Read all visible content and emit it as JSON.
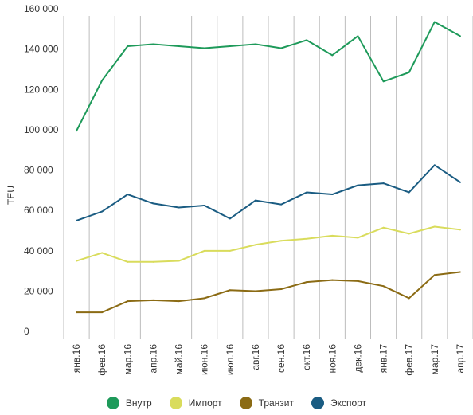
{
  "chart_data": {
    "type": "line",
    "title": "",
    "xlabel": "",
    "ylabel": "TEU",
    "ylim": [
      0,
      160000
    ],
    "yticks": [
      0,
      20000,
      40000,
      60000,
      80000,
      100000,
      120000,
      140000,
      160000
    ],
    "ytick_labels": [
      "0",
      "20 000",
      "40 000",
      "60 000",
      "80 000",
      "100 000",
      "120 000",
      "140 000",
      "160 000"
    ],
    "grid": "vertical",
    "legend_position": "bottom",
    "categories": [
      "янв.16",
      "фев.16",
      "мар.16",
      "апр.16",
      "май.16",
      "июн.16",
      "июл.16",
      "авг.16",
      "сен.16",
      "окт.16",
      "ноя.16",
      "дек.16",
      "янв.17",
      "фев.17",
      "мар.17",
      "апр.17"
    ],
    "series": [
      {
        "name": "Внутр",
        "color": "#1e9a5a",
        "values": [
          103000,
          128000,
          145000,
          146000,
          145000,
          144000,
          145000,
          146000,
          144000,
          148000,
          140500,
          150000,
          127500,
          132000,
          157000,
          150000
        ]
      },
      {
        "name": "Импорт",
        "color": "#d9dc5c",
        "values": [
          38500,
          42500,
          38000,
          38000,
          38500,
          43500,
          43500,
          46500,
          48500,
          49500,
          51000,
          50000,
          55000,
          52000,
          55500,
          54000
        ]
      },
      {
        "name": "Транзит",
        "color": "#8b6b14",
        "values": [
          13000,
          13000,
          18500,
          19000,
          18500,
          20000,
          24000,
          23500,
          24500,
          28000,
          29000,
          28500,
          26000,
          20000,
          31500,
          33000
        ]
      },
      {
        "name": "Экспорт",
        "color": "#1a5c82",
        "values": [
          58500,
          63000,
          71500,
          67000,
          65000,
          66000,
          59500,
          68500,
          66500,
          72500,
          71500,
          76000,
          77000,
          72500,
          86000,
          77500
        ]
      }
    ]
  }
}
